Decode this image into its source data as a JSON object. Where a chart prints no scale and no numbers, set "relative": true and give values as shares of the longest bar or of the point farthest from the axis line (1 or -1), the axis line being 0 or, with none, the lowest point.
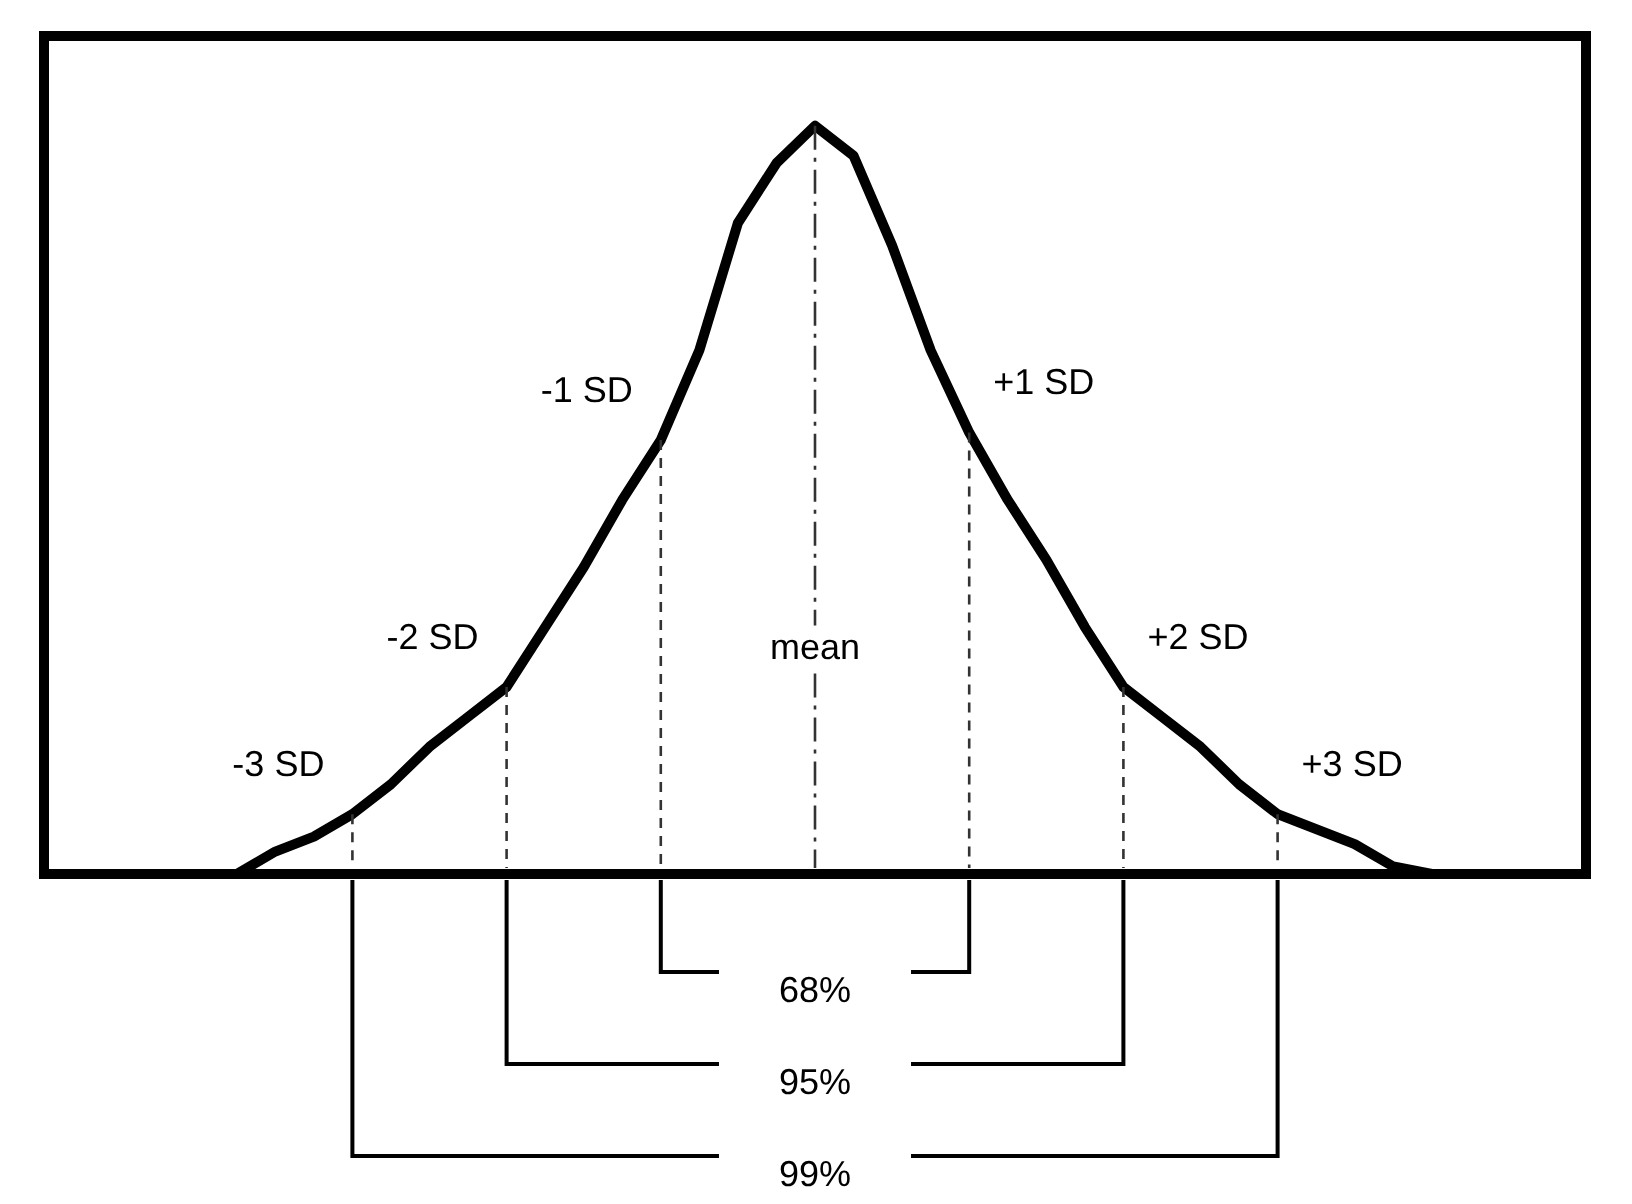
{
  "chart_data": {
    "type": "line",
    "relative": true,
    "categories": [
      null,
      null,
      null,
      null,
      null,
      null,
      null,
      null,
      null,
      null,
      null,
      null,
      null,
      null,
      null,
      null,
      null,
      null,
      null,
      null,
      null,
      null,
      null,
      null,
      null,
      null,
      null,
      null,
      null,
      null,
      null,
      null,
      null,
      null,
      null,
      null,
      null,
      null,
      null,
      null,
      null
    ],
    "values": [
      null,
      null,
      null,
      null,
      null,
      0,
      0.03,
      0.05,
      0.08,
      0.12,
      0.17,
      0.21,
      0.25,
      0.33,
      0.41,
      0.5,
      0.58,
      0.7,
      0.87,
      0.95,
      1,
      0.96,
      0.84,
      0.7,
      0.59,
      0.5,
      0.42,
      0.33,
      0.25,
      0.21,
      0.17,
      0.12,
      0.08,
      0.06,
      0.04,
      0.01,
      0,
      null,
      null,
      null,
      null
    ],
    "color": "#000000",
    "annotations": [
      "-3 SD",
      "-2 SD",
      "-1 SD",
      "mean",
      "+1 SD",
      "+2 SD",
      "+3 SD",
      "68%",
      "95%",
      "99%"
    ]
  }
}
